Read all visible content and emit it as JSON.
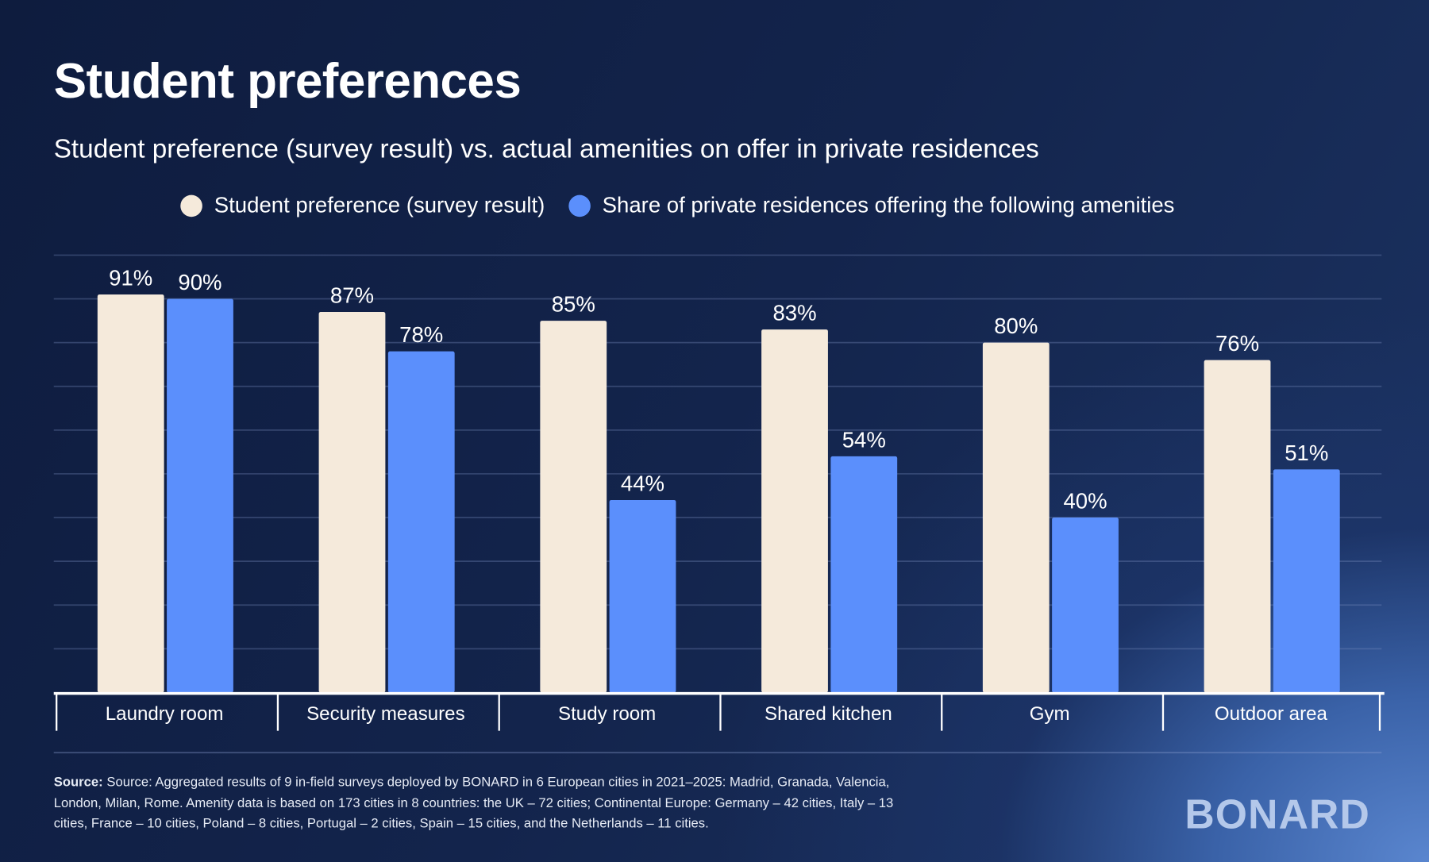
{
  "title": "Student preferences",
  "subtitle": "Student preference (survey result) vs. actual amenities on offer in private residences",
  "colors": {
    "preference": "#f5eadb",
    "offering": "#5b8ffc",
    "background": "#0f1f42"
  },
  "chart_data": {
    "type": "bar",
    "categories": [
      "Laundry room",
      "Security measures",
      "Study room",
      "Shared kitchen",
      "Gym",
      "Outdoor area"
    ],
    "series": [
      {
        "name": "Student preference (survey result)",
        "values": [
          91,
          87,
          85,
          83,
          80,
          76
        ],
        "labels": [
          "91%",
          "87%",
          "85%",
          "83%",
          "80%",
          "76%"
        ]
      },
      {
        "name": "Share of private residences offering the following amenities",
        "values": [
          90,
          78,
          44,
          54,
          40,
          51
        ],
        "labels": [
          "90%",
          "78%",
          "44%",
          "54%",
          "40%",
          "51%"
        ]
      }
    ],
    "ylim": [
      0,
      100
    ],
    "grid": true,
    "legend": "top"
  },
  "footer": {
    "source_label": "Source:",
    "source_text": "Source: Aggregated results of 9 in-field surveys deployed by BONARD in 6 European cities in 2021–2025: Madrid, Granada, Valencia, London, Milan, Rome. Amenity data is based on 173 cities in 8 countries: the UK – 72 cities; Continental Europe: Germany – 42 cities, Italy – 13 cities, France – 10 cities, Poland – 8 cities, Portugal – 2 cities, Spain – 15 cities, and the Netherlands – 11 cities.",
    "logo": "BONARD"
  }
}
